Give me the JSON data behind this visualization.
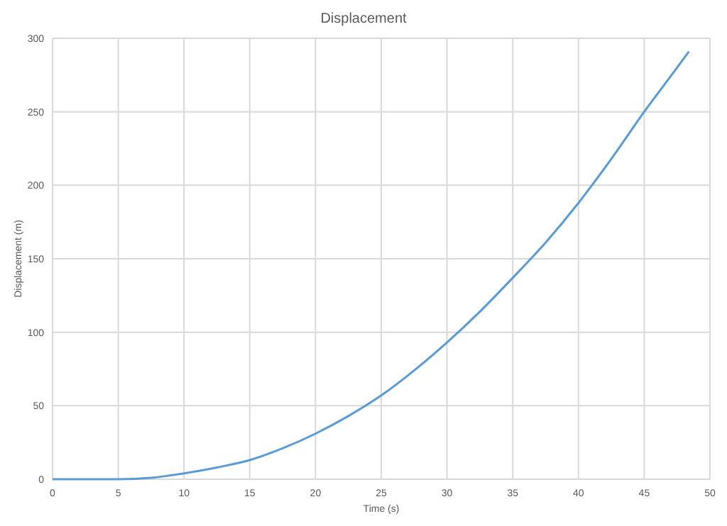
{
  "chart_data": {
    "type": "line",
    "title": "Displacement",
    "xlabel": "Time (s)",
    "ylabel": "Displacement (m)",
    "x": [
      0,
      2.5,
      5,
      7.5,
      10,
      12.5,
      15,
      17.5,
      20,
      22.5,
      25,
      27.5,
      30,
      32.5,
      35,
      37.5,
      40,
      42.5,
      45,
      47.5,
      48.4
    ],
    "series": [
      {
        "color": "#5b9bd5",
        "values": [
          0,
          0,
          0,
          1,
          4,
          8,
          13,
          21,
          31,
          43,
          57,
          74,
          93,
          114,
          137,
          161,
          188,
          218,
          250,
          280,
          291
        ]
      }
    ],
    "xlim": [
      0,
      50
    ],
    "xticks": [
      0,
      5,
      10,
      15,
      20,
      25,
      30,
      35,
      40,
      45,
      50
    ],
    "ylim": [
      0,
      300
    ],
    "yticks": [
      0,
      50,
      100,
      150,
      200,
      250,
      300
    ],
    "grid": true,
    "marker": "none",
    "line_style": "solid"
  }
}
